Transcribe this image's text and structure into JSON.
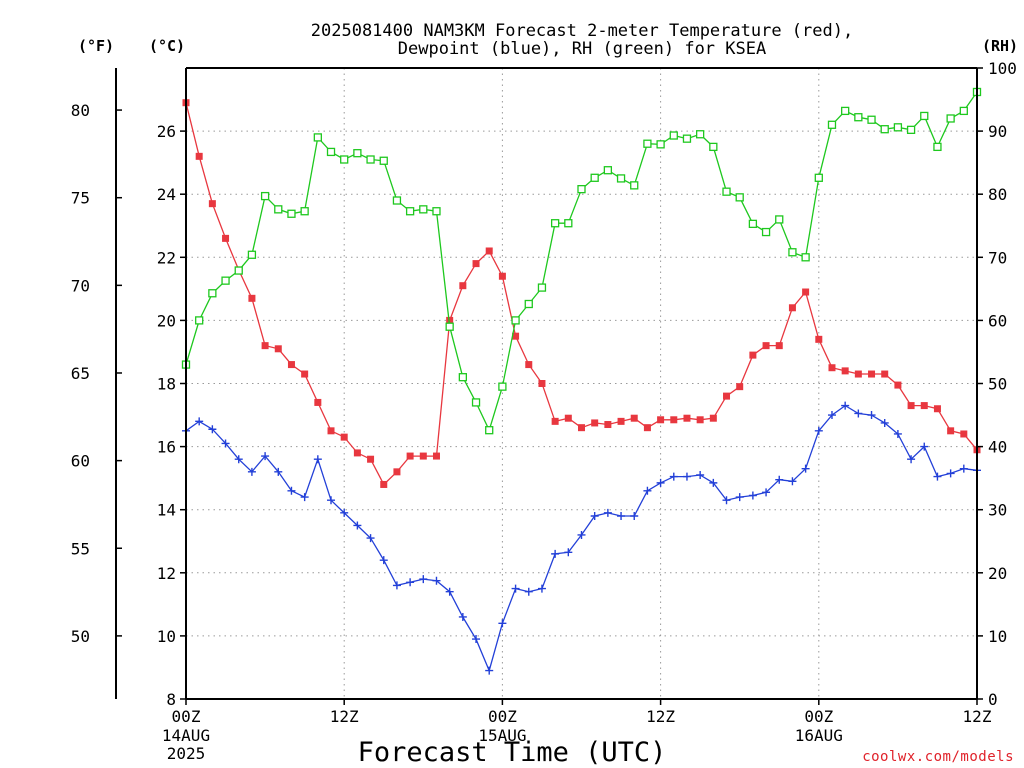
{
  "chart_data": {
    "type": "line",
    "title_lines": [
      "2025081400 NAM3KM Forecast 2-meter Temperature (red),",
      "Dewpoint (blue), RH (green) for KSEA"
    ],
    "xlabel": "Forecast Time (UTC)",
    "credit": "coolwx.com/models",
    "units": {
      "f": "(°F)",
      "c": "(°C)",
      "rh": "(RH)"
    },
    "x_hours_range": [
      0,
      60
    ],
    "x_ticks": [
      {
        "hour": 0,
        "label": "00Z",
        "date": "14AUG",
        "year": "2025"
      },
      {
        "hour": 12,
        "label": "12Z"
      },
      {
        "hour": 24,
        "label": "00Z",
        "date": "15AUG"
      },
      {
        "hour": 36,
        "label": "12Z"
      },
      {
        "hour": 48,
        "label": "00Z",
        "date": "16AUG"
      },
      {
        "hour": 60,
        "label": "12Z"
      }
    ],
    "y_celsius": {
      "range": [
        8,
        28
      ],
      "ticks": [
        8,
        10,
        12,
        14,
        16,
        18,
        20,
        22,
        24,
        26
      ]
    },
    "y_fahrenheit": {
      "range": [
        46.4,
        82.4
      ],
      "ticks": [
        50,
        55,
        60,
        65,
        70,
        75,
        80
      ]
    },
    "y_rh": {
      "range": [
        0,
        100
      ],
      "ticks": [
        0,
        10,
        20,
        30,
        40,
        50,
        60,
        70,
        80,
        90,
        100
      ]
    },
    "grid": true,
    "series": [
      {
        "name": "Temperature",
        "axis": "celsius",
        "color": "#e8373f",
        "marker": "filled-square",
        "values": [
          26.9,
          25.2,
          23.7,
          22.6,
          21.6,
          20.7,
          19.2,
          19.1,
          18.6,
          18.3,
          17.4,
          16.5,
          16.3,
          15.8,
          15.6,
          14.8,
          15.2,
          15.7,
          15.7,
          15.7,
          20.0,
          21.1,
          21.8,
          22.2,
          21.4,
          19.5,
          18.6,
          18.0,
          16.8,
          16.9,
          16.6,
          16.75,
          16.7,
          16.8,
          16.9,
          16.6,
          16.85,
          16.85,
          16.9,
          16.85,
          16.9,
          17.6,
          17.9,
          18.9,
          19.2,
          19.2,
          20.4,
          20.9,
          19.4,
          18.5,
          18.4,
          18.3,
          18.3,
          18.3,
          17.95,
          17.3,
          17.3,
          17.2,
          16.5,
          16.4,
          15.9
        ]
      },
      {
        "name": "Dewpoint",
        "axis": "celsius",
        "color": "#2340d8",
        "marker": "plus",
        "values": [
          16.5,
          16.8,
          16.55,
          16.1,
          15.6,
          15.2,
          15.7,
          15.2,
          14.6,
          14.4,
          15.6,
          14.3,
          13.9,
          13.5,
          13.1,
          12.4,
          11.6,
          11.7,
          11.8,
          11.75,
          11.4,
          10.6,
          9.9,
          8.9,
          10.4,
          11.5,
          11.4,
          11.5,
          12.6,
          12.65,
          13.2,
          13.8,
          13.9,
          13.8,
          13.8,
          14.6,
          14.85,
          15.05,
          15.05,
          15.1,
          14.85,
          14.3,
          14.4,
          14.45,
          14.55,
          14.95,
          14.9,
          15.3,
          16.5,
          17.0,
          17.3,
          17.05,
          17.0,
          16.75,
          16.4,
          15.6,
          16.0,
          15.05,
          15.15,
          15.3,
          15.25
        ]
      },
      {
        "name": "RH",
        "axis": "rh",
        "color": "#1ec81e",
        "marker": "open-square",
        "values": [
          53,
          60,
          64.3,
          66.3,
          67.9,
          70.4,
          79.7,
          77.6,
          76.9,
          77.3,
          89,
          86.7,
          85.5,
          86.5,
          85.5,
          85.3,
          79,
          77.3,
          77.6,
          77.3,
          59,
          51,
          47,
          42.6,
          49.5,
          60,
          62.6,
          65.2,
          75.4,
          75.4,
          80.8,
          82.6,
          83.8,
          82.5,
          81.4,
          88,
          87.9,
          89.3,
          88.8,
          89.5,
          87.5,
          80.4,
          79.5,
          75.3,
          74,
          76,
          70.8,
          70,
          82.6,
          91,
          93.2,
          92.2,
          91.8,
          90.3,
          90.6,
          90.2,
          92.4,
          87.5,
          92,
          93.2,
          96.2
        ]
      }
    ]
  }
}
